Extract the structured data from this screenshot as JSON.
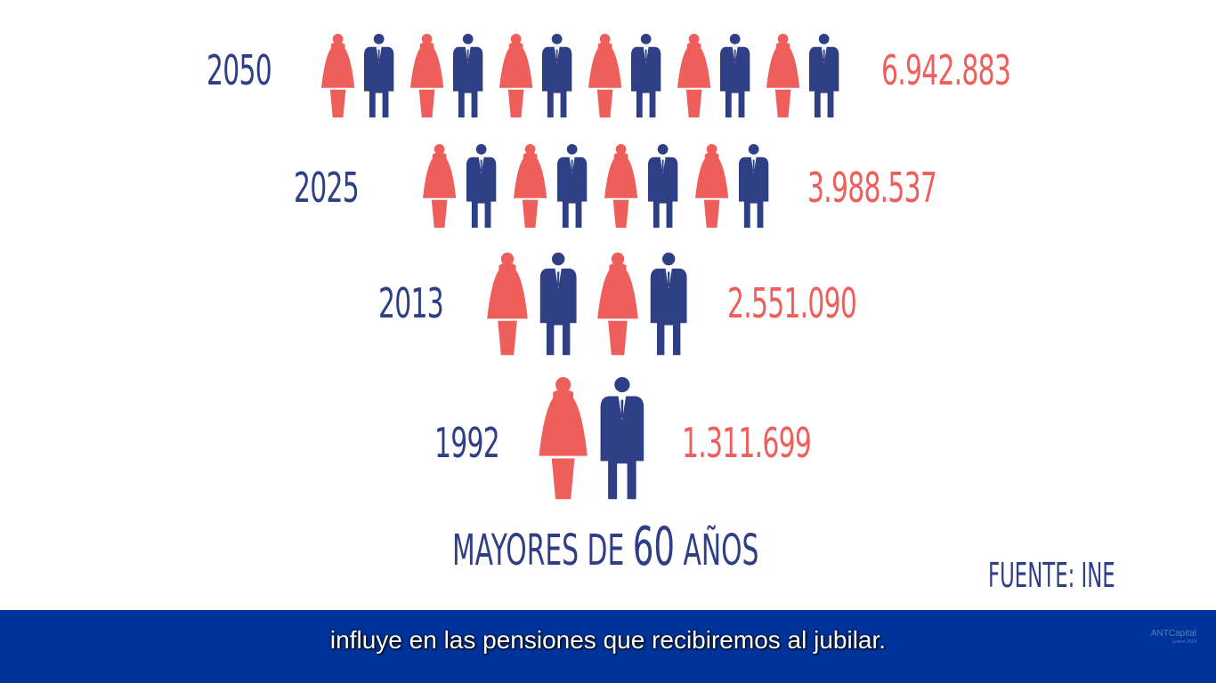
{
  "chart_data": {
    "type": "pictogram",
    "title": "MAYORES DE 60 AÑOS",
    "title_parts": {
      "before": "MAYORES DE ",
      "number": "60",
      "after": " AÑOS"
    },
    "source": "FUENTE: INE",
    "categories": [
      "2050",
      "2025",
      "2013",
      "1992"
    ],
    "values": [
      "6.942.883",
      "3.988.537",
      "2.551.090",
      "1.311.699"
    ],
    "numeric_values": [
      6942883,
      3988537,
      2551090,
      1311699
    ],
    "icon_pairs": [
      6,
      4,
      2,
      1
    ],
    "colors": {
      "female": "#ee5f5c",
      "male": "#2e3f86"
    },
    "icons": [
      "woman-icon",
      "man-icon"
    ]
  },
  "subtitle": {
    "text": "influye en las pensiones que recibiremos al jubilar.",
    "watermark_line1": "ANTCapital",
    "watermark_line2": "Lorem 2014"
  }
}
